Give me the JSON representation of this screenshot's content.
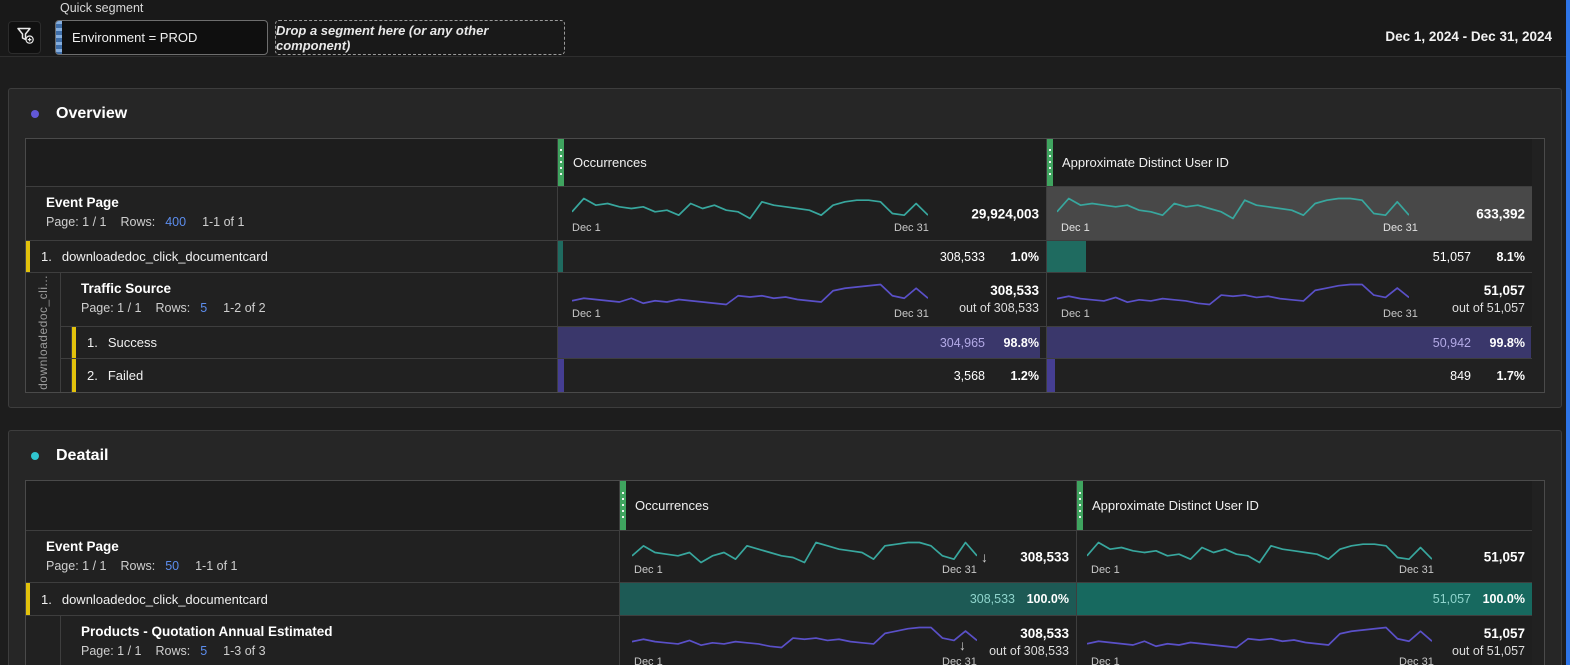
{
  "topbar": {
    "quick_segment_label": "Quick segment",
    "segment_value": "Environment = PROD",
    "dropzone_text": "Drop a segment here (or any other component)",
    "date_range": "Dec 1, 2024 - Dec 31, 2024"
  },
  "icons": {
    "filter_add": "filter-add",
    "sort_desc": "↓"
  },
  "colors": {
    "accent_yellow": "#e2c20c",
    "accent_green": "#3fa45f",
    "spark_teal": "#38a79e",
    "spark_purple": "#5a50c8",
    "fill_indigo": "#3a376b",
    "fill_teal": "#1d5a55",
    "selected_cell": "#484848",
    "link_blue": "#5c8ded",
    "overview_dot": "#6258d8",
    "detail_dot": "#30c5cf",
    "edge_blue": "#2e75e8"
  },
  "axis": {
    "dec1": "Dec 1",
    "dec31": "Dec 31"
  },
  "overview": {
    "title": "Overview",
    "col_occurrences": "Occurrences",
    "col_users": "Approximate Distinct User ID",
    "side_label": "downloadedoc_cli...",
    "event_page": {
      "name": "Event Page",
      "page": "Page: 1 / 1",
      "rows_label": "Rows:",
      "rows_value": "400",
      "range": "1-1 of 1",
      "occ_total": "29,924,003",
      "user_total": "633,392"
    },
    "item1": {
      "index": "1.",
      "label": "downloadedoc_click_documentcard",
      "occ": "308,533",
      "occ_pct": "1.0%",
      "occ_fill": 1.0,
      "user": "51,057",
      "user_pct": "8.1%",
      "user_fill": 8.1
    },
    "traffic": {
      "name": "Traffic Source",
      "page": "Page: 1 / 1",
      "rows_label": "Rows:",
      "rows_value": "5",
      "range": "1-2 of 2",
      "occ_total": "308,533",
      "occ_outof": "out of 308,533",
      "user_total": "51,057",
      "user_outof": "out of 51,057"
    },
    "success": {
      "index": "1.",
      "label": "Success",
      "occ": "304,965",
      "occ_pct": "98.8%",
      "occ_fill": 98.8,
      "user": "50,942",
      "user_pct": "99.8%",
      "user_fill": 99.8
    },
    "failed": {
      "index": "2.",
      "label": "Failed",
      "occ": "3,568",
      "occ_pct": "1.2%",
      "occ_fill": 1.2,
      "user": "849",
      "user_pct": "1.7%",
      "user_fill": 1.7
    }
  },
  "detail": {
    "title": "Deatail",
    "col_occurrences": "Occurrences",
    "col_users": "Approximate Distinct User ID",
    "event_page": {
      "name": "Event Page",
      "page": "Page: 1 / 1",
      "rows_label": "Rows:",
      "rows_value": "50",
      "range": "1-1 of 1",
      "occ_total": "308,533",
      "user_total": "51,057"
    },
    "item1": {
      "index": "1.",
      "label": "downloadedoc_click_documentcard",
      "occ": "308,533",
      "occ_pct": "100.0%",
      "occ_fill": 100,
      "user": "51,057",
      "user_pct": "100.0%",
      "user_fill": 100
    },
    "products": {
      "name": "Products - Quotation Annual Estimated",
      "page": "Page: 1 / 1",
      "rows_label": "Rows:",
      "rows_value": "5",
      "range": "1-3 of 3",
      "occ_total": "308,533",
      "occ_outof": "out of 308,533",
      "user_total": "51,057",
      "user_outof": "out of 51,057"
    }
  },
  "sparklines": {
    "teal1": [
      62,
      70,
      66,
      67,
      65,
      64,
      65,
      62,
      63,
      60,
      67,
      64,
      66,
      63,
      62,
      58,
      68,
      66,
      65,
      64,
      63,
      60,
      66,
      68,
      69,
      69,
      68,
      61,
      60,
      67,
      60
    ],
    "teal2": [
      60,
      68,
      64,
      65,
      64,
      63,
      64,
      61,
      60,
      58,
      65,
      63,
      64,
      62,
      60,
      56,
      67,
      64,
      63,
      62,
      61,
      58,
      65,
      67,
      68,
      68,
      67,
      59,
      58,
      66,
      58
    ],
    "teal3": [
      64,
      70,
      66,
      65,
      64,
      66,
      60,
      64,
      66,
      62,
      70,
      68,
      66,
      64,
      63,
      60,
      72,
      70,
      68,
      67,
      66,
      62,
      70,
      71,
      72,
      72,
      70,
      64,
      62,
      72,
      64
    ],
    "purple1": [
      58,
      60,
      59,
      58,
      57,
      60,
      56,
      58,
      57,
      59,
      58,
      57,
      56,
      55,
      62,
      61,
      62,
      60,
      61,
      59,
      58,
      57,
      66,
      68,
      69,
      70,
      71,
      62,
      60,
      68,
      60
    ],
    "purple2": [
      60,
      62,
      60,
      59,
      58,
      61,
      57,
      59,
      58,
      60,
      59,
      58,
      56,
      55,
      63,
      62,
      63,
      61,
      62,
      60,
      59,
      58,
      67,
      69,
      71,
      72,
      72,
      63,
      61,
      69,
      61
    ]
  }
}
